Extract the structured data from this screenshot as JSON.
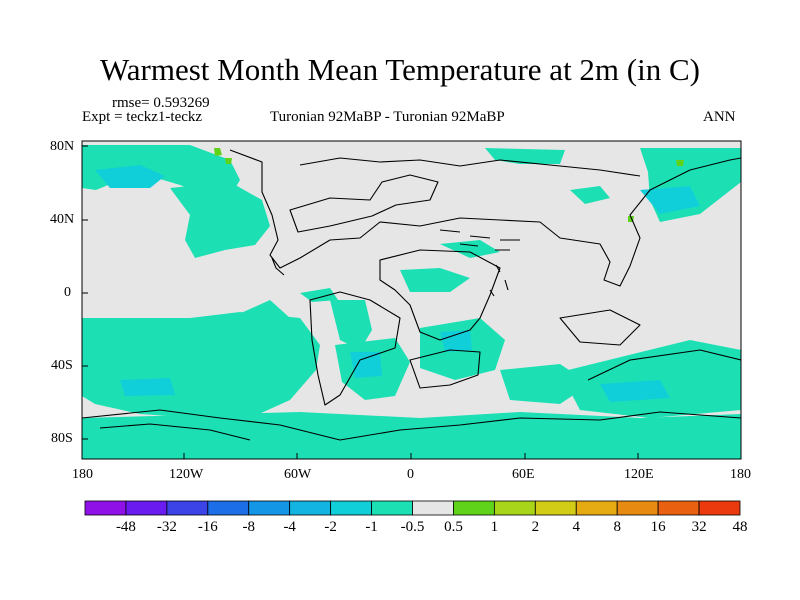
{
  "title": "Warmest Month Mean Temperature at 2m (in C)",
  "rmse": "rmse= 0.593269",
  "expt": "Expt = teckz1-teckz",
  "subtitle": "Turonian  92MaBP - Turonian  92MaBP",
  "period": "ANN",
  "lat_labels": [
    "80N",
    "40N",
    "0",
    "40S",
    "80S"
  ],
  "lon_labels": [
    "180",
    "120W",
    "60W",
    "0",
    "60E",
    "120E",
    "180"
  ],
  "colorbar": {
    "labels": [
      "-48",
      "-32",
      "-16",
      "-8",
      "-4",
      "-2",
      "-1",
      "-0.5",
      "0.5",
      "1",
      "2",
      "4",
      "8",
      "16",
      "32",
      "48"
    ],
    "colors": [
      "#9010e8",
      "#6a1cf0",
      "#3c44e8",
      "#1c6ee8",
      "#1496e6",
      "#14b4e2",
      "#10cfd8",
      "#1ce0b4",
      "#e6e6e6",
      "#5fd21a",
      "#a8d41a",
      "#d2cc16",
      "#e6aa12",
      "#e68a12",
      "#e86010",
      "#ea3a0e"
    ]
  },
  "map_colors": {
    "background": "#e6e6e6",
    "anomaly_fill": "#1ce0b4",
    "anomaly_fill_strong": "#10cfd8",
    "positive_fill": "#5fd21a",
    "coast": "#000000"
  }
}
